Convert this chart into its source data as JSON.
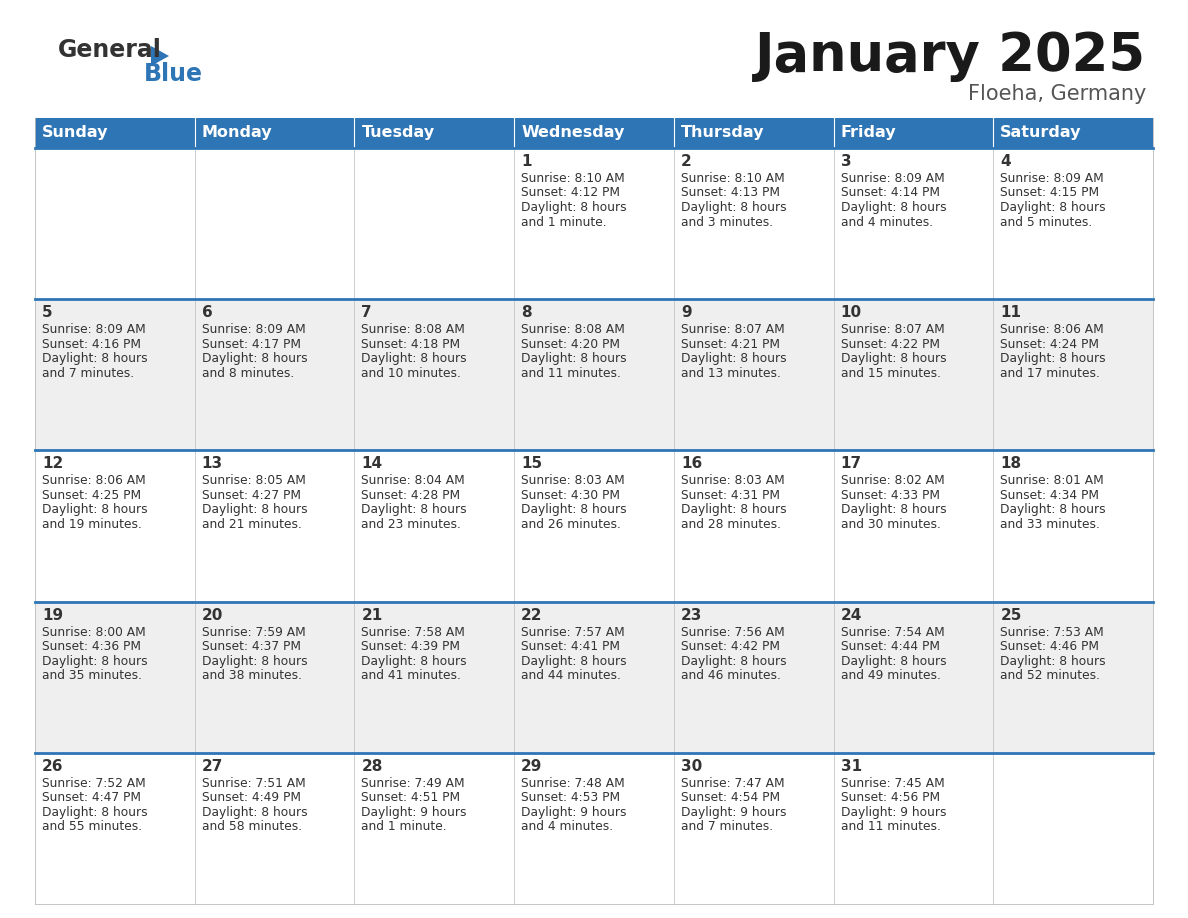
{
  "title": "January 2025",
  "subtitle": "Floeha, Germany",
  "header_color": "#2E75B6",
  "header_text_color": "#FFFFFF",
  "week_bg_colors": [
    "#FFFFFF",
    "#EFEFEF",
    "#FFFFFF",
    "#EFEFEF",
    "#FFFFFF"
  ],
  "separator_color": "#2E75B6",
  "grid_color": "#CCCCCC",
  "text_color": "#333333",
  "day_names": [
    "Sunday",
    "Monday",
    "Tuesday",
    "Wednesday",
    "Thursday",
    "Friday",
    "Saturday"
  ],
  "weeks": [
    [
      {
        "day": "",
        "info": ""
      },
      {
        "day": "",
        "info": ""
      },
      {
        "day": "",
        "info": ""
      },
      {
        "day": "1",
        "info": "Sunrise: 8:10 AM\nSunset: 4:12 PM\nDaylight: 8 hours\nand 1 minute."
      },
      {
        "day": "2",
        "info": "Sunrise: 8:10 AM\nSunset: 4:13 PM\nDaylight: 8 hours\nand 3 minutes."
      },
      {
        "day": "3",
        "info": "Sunrise: 8:09 AM\nSunset: 4:14 PM\nDaylight: 8 hours\nand 4 minutes."
      },
      {
        "day": "4",
        "info": "Sunrise: 8:09 AM\nSunset: 4:15 PM\nDaylight: 8 hours\nand 5 minutes."
      }
    ],
    [
      {
        "day": "5",
        "info": "Sunrise: 8:09 AM\nSunset: 4:16 PM\nDaylight: 8 hours\nand 7 minutes."
      },
      {
        "day": "6",
        "info": "Sunrise: 8:09 AM\nSunset: 4:17 PM\nDaylight: 8 hours\nand 8 minutes."
      },
      {
        "day": "7",
        "info": "Sunrise: 8:08 AM\nSunset: 4:18 PM\nDaylight: 8 hours\nand 10 minutes."
      },
      {
        "day": "8",
        "info": "Sunrise: 8:08 AM\nSunset: 4:20 PM\nDaylight: 8 hours\nand 11 minutes."
      },
      {
        "day": "9",
        "info": "Sunrise: 8:07 AM\nSunset: 4:21 PM\nDaylight: 8 hours\nand 13 minutes."
      },
      {
        "day": "10",
        "info": "Sunrise: 8:07 AM\nSunset: 4:22 PM\nDaylight: 8 hours\nand 15 minutes."
      },
      {
        "day": "11",
        "info": "Sunrise: 8:06 AM\nSunset: 4:24 PM\nDaylight: 8 hours\nand 17 minutes."
      }
    ],
    [
      {
        "day": "12",
        "info": "Sunrise: 8:06 AM\nSunset: 4:25 PM\nDaylight: 8 hours\nand 19 minutes."
      },
      {
        "day": "13",
        "info": "Sunrise: 8:05 AM\nSunset: 4:27 PM\nDaylight: 8 hours\nand 21 minutes."
      },
      {
        "day": "14",
        "info": "Sunrise: 8:04 AM\nSunset: 4:28 PM\nDaylight: 8 hours\nand 23 minutes."
      },
      {
        "day": "15",
        "info": "Sunrise: 8:03 AM\nSunset: 4:30 PM\nDaylight: 8 hours\nand 26 minutes."
      },
      {
        "day": "16",
        "info": "Sunrise: 8:03 AM\nSunset: 4:31 PM\nDaylight: 8 hours\nand 28 minutes."
      },
      {
        "day": "17",
        "info": "Sunrise: 8:02 AM\nSunset: 4:33 PM\nDaylight: 8 hours\nand 30 minutes."
      },
      {
        "day": "18",
        "info": "Sunrise: 8:01 AM\nSunset: 4:34 PM\nDaylight: 8 hours\nand 33 minutes."
      }
    ],
    [
      {
        "day": "19",
        "info": "Sunrise: 8:00 AM\nSunset: 4:36 PM\nDaylight: 8 hours\nand 35 minutes."
      },
      {
        "day": "20",
        "info": "Sunrise: 7:59 AM\nSunset: 4:37 PM\nDaylight: 8 hours\nand 38 minutes."
      },
      {
        "day": "21",
        "info": "Sunrise: 7:58 AM\nSunset: 4:39 PM\nDaylight: 8 hours\nand 41 minutes."
      },
      {
        "day": "22",
        "info": "Sunrise: 7:57 AM\nSunset: 4:41 PM\nDaylight: 8 hours\nand 44 minutes."
      },
      {
        "day": "23",
        "info": "Sunrise: 7:56 AM\nSunset: 4:42 PM\nDaylight: 8 hours\nand 46 minutes."
      },
      {
        "day": "24",
        "info": "Sunrise: 7:54 AM\nSunset: 4:44 PM\nDaylight: 8 hours\nand 49 minutes."
      },
      {
        "day": "25",
        "info": "Sunrise: 7:53 AM\nSunset: 4:46 PM\nDaylight: 8 hours\nand 52 minutes."
      }
    ],
    [
      {
        "day": "26",
        "info": "Sunrise: 7:52 AM\nSunset: 4:47 PM\nDaylight: 8 hours\nand 55 minutes."
      },
      {
        "day": "27",
        "info": "Sunrise: 7:51 AM\nSunset: 4:49 PM\nDaylight: 8 hours\nand 58 minutes."
      },
      {
        "day": "28",
        "info": "Sunrise: 7:49 AM\nSunset: 4:51 PM\nDaylight: 9 hours\nand 1 minute."
      },
      {
        "day": "29",
        "info": "Sunrise: 7:48 AM\nSunset: 4:53 PM\nDaylight: 9 hours\nand 4 minutes."
      },
      {
        "day": "30",
        "info": "Sunrise: 7:47 AM\nSunset: 4:54 PM\nDaylight: 9 hours\nand 7 minutes."
      },
      {
        "day": "31",
        "info": "Sunrise: 7:45 AM\nSunset: 4:56 PM\nDaylight: 9 hours\nand 11 minutes."
      },
      {
        "day": "",
        "info": ""
      }
    ]
  ],
  "logo_general_color": "#333333",
  "logo_blue_color": "#2E75B6",
  "title_fontsize": 38,
  "subtitle_fontsize": 15,
  "header_fontsize": 11.5,
  "day_num_fontsize": 11,
  "cell_text_fontsize": 8.8
}
